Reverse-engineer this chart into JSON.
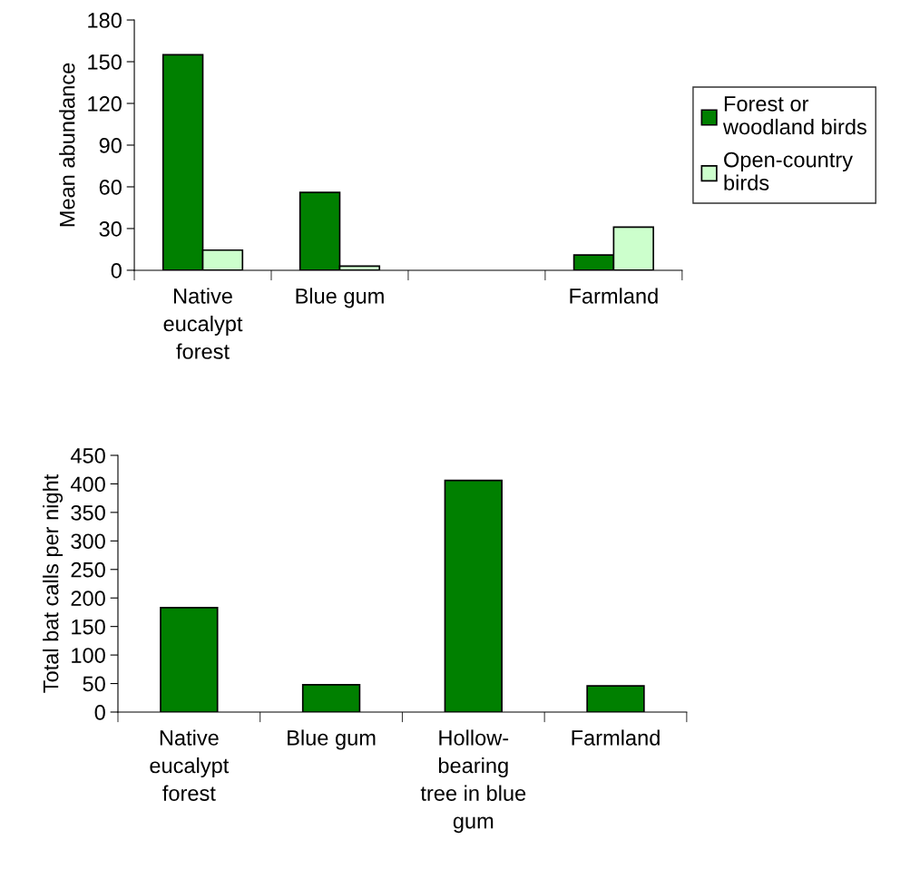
{
  "chart_data": [
    {
      "type": "bar",
      "ylabel": "Mean abundance",
      "categories": [
        "Native\neucalypt\nforest",
        "Blue gum",
        null,
        "Farmland"
      ],
      "series": [
        {
          "name": "Forest or\nwoodland birds",
          "color": "#008000",
          "values": [
            155,
            56,
            null,
            11
          ]
        },
        {
          "name": "Open-country\nbirds",
          "color": "#ccffcc",
          "values": [
            14.5,
            3,
            null,
            31
          ]
        }
      ],
      "ylim": [
        0,
        180
      ],
      "yticks": [
        0,
        30,
        60,
        90,
        120,
        150,
        180
      ],
      "grid": false,
      "legend": "right"
    },
    {
      "type": "bar",
      "ylabel": "Total bat calls per night",
      "categories": [
        "Native\neucalypt\nforest",
        "Blue gum",
        "Hollow-\nbearing\ntree in blue\ngum",
        "Farmland"
      ],
      "series": [
        {
          "color": "#008000",
          "values": [
            183,
            48,
            406,
            46
          ]
        }
      ],
      "ylim": [
        0,
        450
      ],
      "yticks": [
        0,
        50,
        100,
        150,
        200,
        250,
        300,
        350,
        400,
        450
      ],
      "grid": false
    }
  ]
}
